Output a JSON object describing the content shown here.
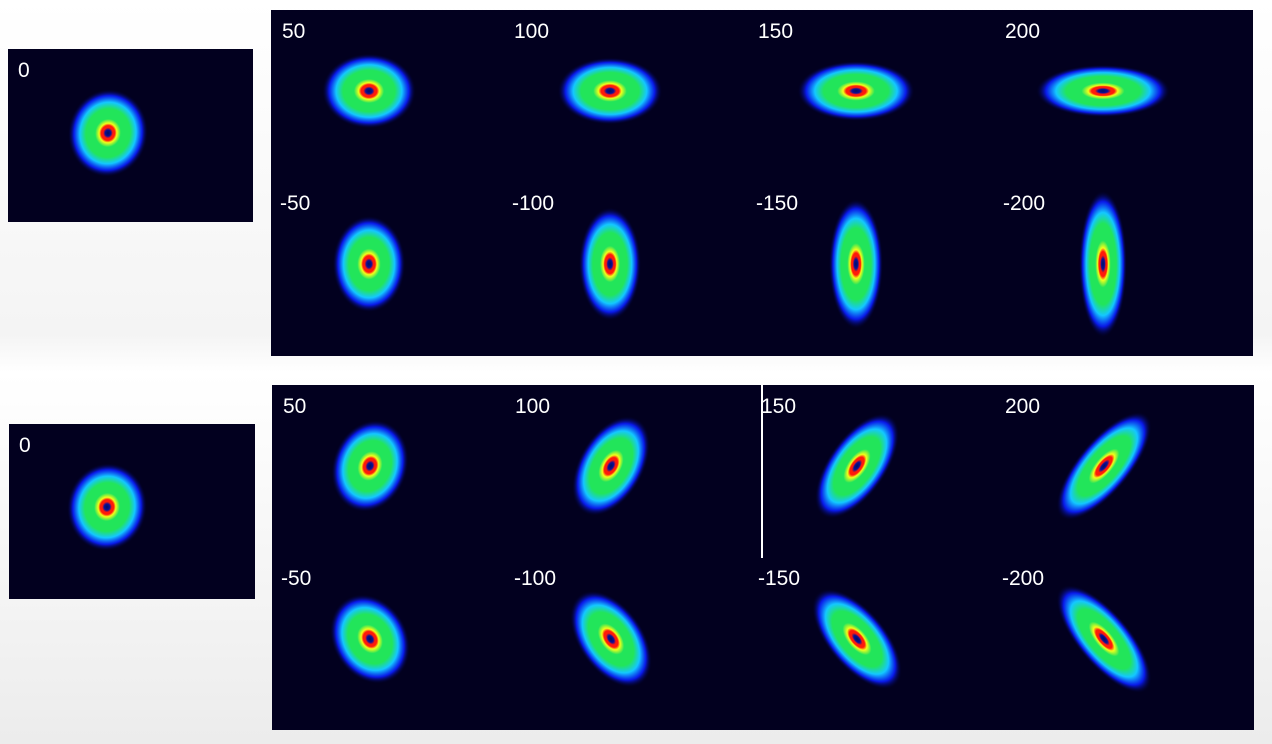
{
  "rows": [
    {
      "reference": {
        "label": "0",
        "angle": -80,
        "elong": 1.05
      },
      "top": [
        {
          "label": "50",
          "angle": 0,
          "elong": 1.12
        },
        {
          "label": "100",
          "angle": 0,
          "elong": 1.25
        },
        {
          "label": "150",
          "angle": 0,
          "elong": 1.4
        },
        {
          "label": "200",
          "angle": 0,
          "elong": 1.6
        }
      ],
      "bottom": [
        {
          "label": "-50",
          "angle": 90,
          "elong": 1.15
        },
        {
          "label": "-100",
          "angle": 90,
          "elong": 1.35
        },
        {
          "label": "-150",
          "angle": 90,
          "elong": 1.55
        },
        {
          "label": "-200",
          "angle": 90,
          "elong": 1.75
        }
      ]
    },
    {
      "reference": {
        "label": "0",
        "angle": -80,
        "elong": 1.05
      },
      "top": [
        {
          "label": "50",
          "angle": -70,
          "elong": 1.12
        },
        {
          "label": "100",
          "angle": -60,
          "elong": 1.3
        },
        {
          "label": "150",
          "angle": -55,
          "elong": 1.45
        },
        {
          "label": "200",
          "angle": -50,
          "elong": 1.6
        }
      ],
      "bottom": [
        {
          "label": "-50",
          "angle": 60,
          "elong": 1.12
        },
        {
          "label": "-100",
          "angle": 55,
          "elong": 1.3
        },
        {
          "label": "-150",
          "angle": 50,
          "elong": 1.45
        },
        {
          "label": "-200",
          "angle": 50,
          "elong": 1.6
        }
      ]
    }
  ],
  "colors": {
    "background": "#02001f",
    "halo": "#0a1cff",
    "mid": "#14c8ff",
    "body": "#22e55a",
    "yellow": "#f2ff1a",
    "ring": "#ff1a0a",
    "core": "#0a0f9a",
    "center": "#001060"
  }
}
